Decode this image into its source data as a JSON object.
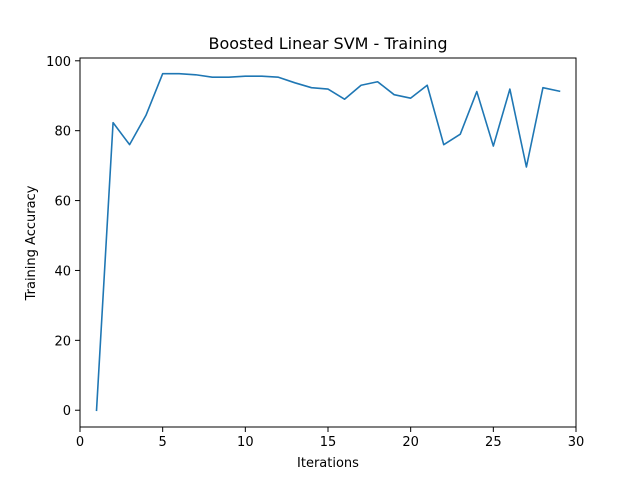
{
  "chart_data": {
    "type": "line",
    "title": "Boosted Linear SVM - Training",
    "xlabel": "Iterations",
    "ylabel": "Training Accuracy",
    "xlim": [
      0,
      30
    ],
    "ylim": [
      -4.8,
      100.8
    ],
    "xticks": [
      0,
      5,
      10,
      15,
      20,
      25,
      30
    ],
    "yticks": [
      0,
      20,
      40,
      60,
      80,
      100
    ],
    "grid": false,
    "series": [
      {
        "color": "#1f77b4",
        "x": [
          1,
          2,
          3,
          4,
          5,
          6,
          7,
          8,
          9,
          10,
          11,
          12,
          13,
          14,
          15,
          16,
          17,
          18,
          19,
          20,
          21,
          22,
          23,
          24,
          25,
          26,
          27,
          28,
          29
        ],
        "y": [
          0,
          82.3,
          76.0,
          84.5,
          96.3,
          96.3,
          96.0,
          95.3,
          95.3,
          95.6,
          95.6,
          95.3,
          93.7,
          92.3,
          91.9,
          89.0,
          93.0,
          94.0,
          90.3,
          89.3,
          93.0,
          76.0,
          79.0,
          91.2,
          75.6,
          91.9,
          69.6,
          92.3,
          91.3
        ]
      }
    ]
  }
}
